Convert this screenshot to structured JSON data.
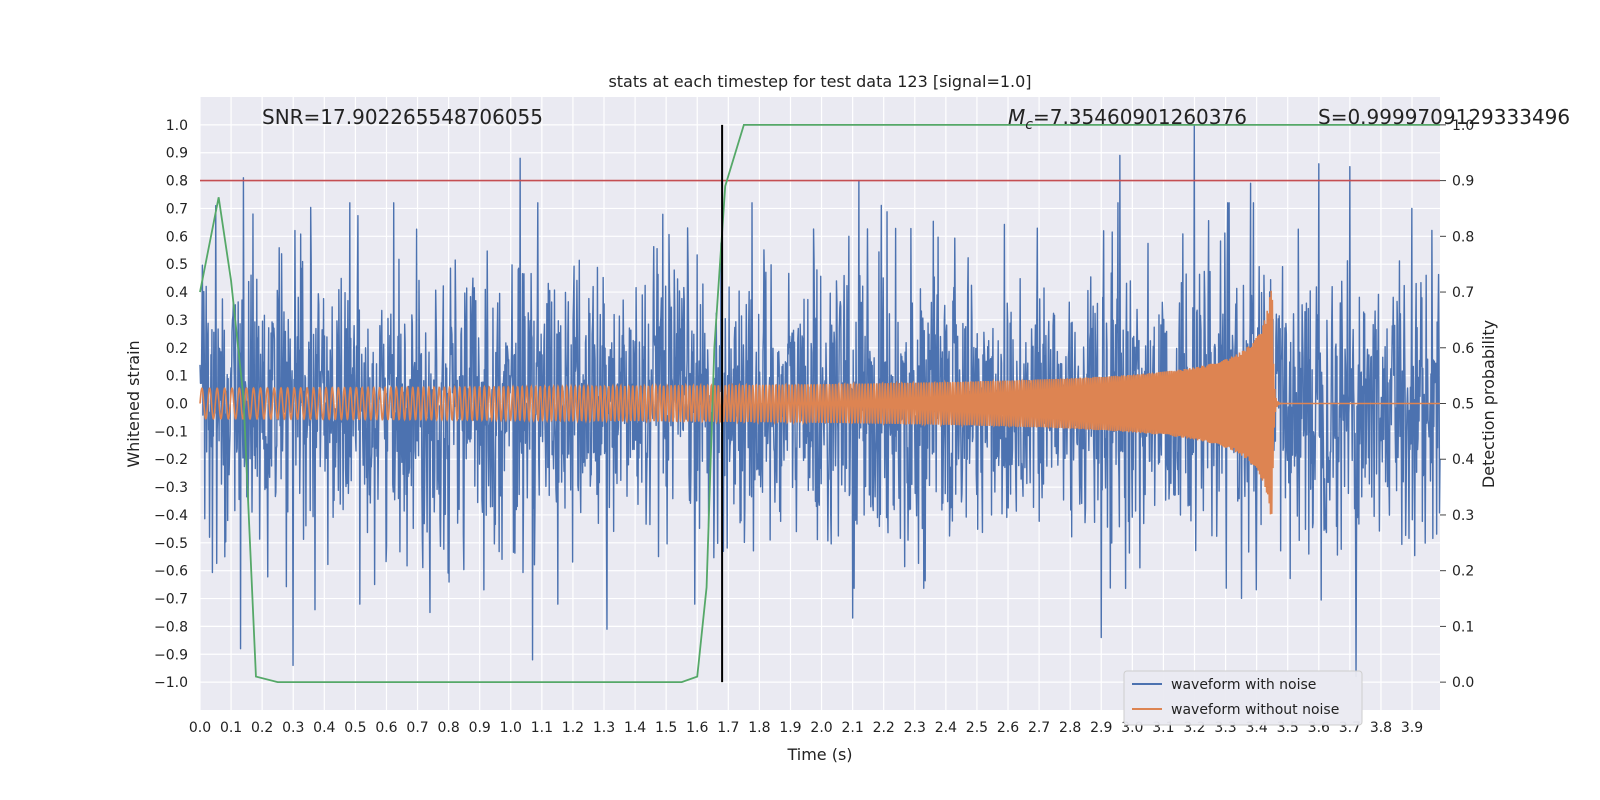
{
  "chart_data": {
    "type": "line",
    "title": "stats at each timestep for test data 123 [signal=1.0]",
    "xlabel": "Time (s)",
    "ylabel": "Whitened strain",
    "y2label": "Detection probability",
    "xlim": [
      0.0,
      3.99
    ],
    "ylim": [
      -1.1,
      1.1
    ],
    "y2lim": [
      -0.05,
      1.05
    ],
    "grid": true,
    "x_ticks": [
      "0.0",
      "0.1",
      "0.2",
      "0.3",
      "0.4",
      "0.5",
      "0.6",
      "0.7",
      "0.8",
      "0.9",
      "1.0",
      "1.1",
      "1.2",
      "1.3",
      "1.4",
      "1.5",
      "1.6",
      "1.7",
      "1.8",
      "1.9",
      "2.0",
      "2.1",
      "2.2",
      "2.3",
      "2.4",
      "2.5",
      "2.6",
      "2.7",
      "2.8",
      "2.9",
      "3.0",
      "3.1",
      "3.2",
      "3.3",
      "3.4",
      "3.5",
      "3.6",
      "3.7",
      "3.8",
      "3.9"
    ],
    "y_ticks": [
      "1.0",
      "0.9",
      "0.8",
      "0.7",
      "0.6",
      "0.5",
      "0.4",
      "0.3",
      "0.2",
      "0.1",
      "0.0",
      "−0.1",
      "−0.2",
      "−0.3",
      "−0.4",
      "−0.5",
      "−0.6",
      "−0.7",
      "−0.8",
      "−0.9",
      "−1.0"
    ],
    "y2_ticks": [
      "1.0",
      "0.9",
      "0.8",
      "0.7",
      "0.6",
      "0.5",
      "0.4",
      "0.3",
      "0.2",
      "0.1",
      "0.0"
    ],
    "annotations": {
      "snr": "SNR=17.902265548706055",
      "mc_symbol": "M",
      "mc_subscript": "c",
      "mc_value": "=7.35460901260376",
      "s": "S=0.9999709129333496"
    },
    "legend": {
      "position": "lower-right",
      "entries": [
        {
          "label": "waveform with noise",
          "color": "#4c72b0"
        },
        {
          "label": "waveform without noise",
          "color": "#dd8452"
        }
      ]
    },
    "threshold_line": {
      "y2": 0.9,
      "color": "#c44e52"
    },
    "marker_line": {
      "x": 1.68,
      "ymin": -1.0,
      "ymax": 1.0,
      "color": "#000000"
    },
    "series": [
      {
        "name": "waveform with noise",
        "color": "#4c72b0",
        "axis": "left",
        "description": "noisy whitened strain, approx std 0.28",
        "spikes": [
          {
            "x": 0.02,
            "y": 0.42
          },
          {
            "x": 0.03,
            "y": -0.48
          },
          {
            "x": 0.05,
            "y": 0.71
          },
          {
            "x": 0.08,
            "y": -0.55
          },
          {
            "x": 0.13,
            "y": -0.88
          },
          {
            "x": 0.14,
            "y": 0.81
          },
          {
            "x": 0.17,
            "y": 0.68
          },
          {
            "x": 0.3,
            "y": -0.94
          },
          {
            "x": 0.37,
            "y": -0.74
          },
          {
            "x": 0.74,
            "y": -0.75
          },
          {
            "x": 1.03,
            "y": 0.88
          },
          {
            "x": 1.07,
            "y": -0.92
          },
          {
            "x": 1.31,
            "y": -0.81
          },
          {
            "x": 2.12,
            "y": 0.8
          },
          {
            "x": 2.1,
            "y": -0.77
          },
          {
            "x": 2.9,
            "y": -0.84
          },
          {
            "x": 2.96,
            "y": 0.89
          },
          {
            "x": 3.2,
            "y": 1.0
          },
          {
            "x": 3.38,
            "y": 0.79
          },
          {
            "x": 3.6,
            "y": 0.86
          },
          {
            "x": 3.7,
            "y": 0.85
          },
          {
            "x": 3.72,
            "y": -0.98
          },
          {
            "x": 3.9,
            "y": 0.7
          }
        ]
      },
      {
        "name": "waveform without noise",
        "color": "#dd8452",
        "axis": "left",
        "description": "chirp signal, amplitude grows from 0.03 to 0.45, merger at 3.45 s",
        "start_amplitude": 0.03,
        "peak_amplitude": 0.45,
        "start_frequency_hz": 40,
        "peak_frequency_hz": 260,
        "merger_time": 3.45
      },
      {
        "name": "detection probability",
        "color": "#55a868",
        "axis": "right",
        "x": [
          0.0,
          0.06,
          0.1,
          0.14,
          0.18,
          0.25,
          0.75,
          1.55,
          1.6,
          1.63,
          1.655,
          1.69,
          1.75,
          3.99
        ],
        "y": [
          0.7,
          0.87,
          0.72,
          0.51,
          0.01,
          0.0,
          0.0,
          0.0,
          0.01,
          0.17,
          0.6,
          0.89,
          1.0,
          1.0
        ]
      }
    ]
  }
}
